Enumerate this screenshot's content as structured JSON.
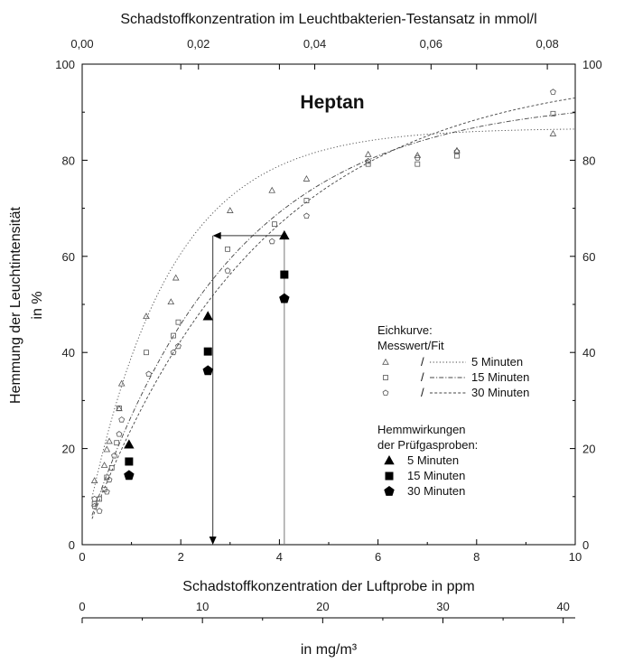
{
  "chart_data": {
    "type": "scatter",
    "title": "Heptan",
    "xlabel": "Schadstoffkonzentration der Luftprobe in ppm",
    "ylabel_line1": "Hemmung der Leuchtintensität",
    "ylabel_line2": "in %",
    "top_xlabel": "Schadstoffkonzentration im Leuchtbakterien-Testansatz in mmol/l",
    "bottom2_xlabel": "in mg/m³",
    "xlim": [
      0,
      10
    ],
    "ylim": [
      0,
      100
    ],
    "top_xlim": [
      0,
      0.0848
    ],
    "bottom2_xlim": [
      0,
      41
    ],
    "x_ticks": [
      "0",
      "2",
      "4",
      "6",
      "8",
      "10"
    ],
    "y_ticks": [
      "0",
      "20",
      "40",
      "60",
      "80",
      "100"
    ],
    "y_ticks_right": [
      "0",
      "20",
      "40",
      "60",
      "80",
      "100"
    ],
    "top_ticks": [
      "0,00",
      "0,02",
      "0,04",
      "0,06",
      "0,08"
    ],
    "top_tick_values": [
      0,
      0.02,
      0.04,
      0.06,
      0.08
    ],
    "bottom2_ticks": [
      "0",
      "10",
      "20",
      "30",
      "40"
    ],
    "bottom2_tick_values": [
      0,
      10,
      20,
      30,
      40
    ],
    "calibration_series": [
      {
        "name": "5 Minuten",
        "marker": "triangle-open",
        "points": [
          [
            0.25,
            13.3
          ],
          [
            0.45,
            16.5
          ],
          [
            0.5,
            19.8
          ],
          [
            0.55,
            21.5
          ],
          [
            0.75,
            28.3
          ],
          [
            0.8,
            33.5
          ],
          [
            1.3,
            47.5
          ],
          [
            1.8,
            50.5
          ],
          [
            1.9,
            55.5
          ],
          [
            3.0,
            69.5
          ],
          [
            3.85,
            73.7
          ],
          [
            4.55,
            76.1
          ],
          [
            5.8,
            81.2
          ],
          [
            6.8,
            81.0
          ],
          [
            7.6,
            82.0
          ],
          [
            9.55,
            85.5
          ]
        ]
      },
      {
        "name": "15 Minuten",
        "marker": "square-open",
        "points": [
          [
            0.25,
            8.5
          ],
          [
            0.35,
            9.5
          ],
          [
            0.45,
            11.5
          ],
          [
            0.5,
            14.0
          ],
          [
            0.6,
            16.0
          ],
          [
            0.7,
            21.2
          ],
          [
            0.75,
            28.4
          ],
          [
            1.3,
            40.0
          ],
          [
            1.85,
            43.5
          ],
          [
            1.95,
            46.3
          ],
          [
            2.95,
            61.5
          ],
          [
            3.9,
            66.7
          ],
          [
            4.55,
            71.6
          ],
          [
            5.8,
            79.2
          ],
          [
            6.8,
            79.2
          ],
          [
            7.6,
            80.9
          ],
          [
            9.55,
            89.7
          ]
        ]
      },
      {
        "name": "30 Minuten",
        "marker": "pentagon-open",
        "points": [
          [
            0.25,
            9.5
          ],
          [
            0.25,
            8.0
          ],
          [
            0.35,
            7.0
          ],
          [
            0.5,
            11.0
          ],
          [
            0.55,
            13.5
          ],
          [
            0.65,
            18.5
          ],
          [
            0.75,
            23.0
          ],
          [
            0.8,
            26.0
          ],
          [
            1.35,
            35.5
          ],
          [
            1.85,
            40.0
          ],
          [
            1.95,
            41.3
          ],
          [
            2.95,
            57.0
          ],
          [
            3.85,
            63.1
          ],
          [
            4.55,
            68.4
          ],
          [
            5.8,
            79.8
          ],
          [
            6.8,
            80.5
          ],
          [
            7.6,
            81.8
          ],
          [
            9.55,
            94.2
          ]
        ]
      }
    ],
    "fit_curves": [
      {
        "name": "5 Minuten",
        "style": "dotted",
        "a": 86.7,
        "k": 0.6
      },
      {
        "name": "15 Minuten",
        "style": "dashdot",
        "a": 93.0,
        "k": 0.34
      },
      {
        "name": "30 Minuten",
        "style": "dashed",
        "a": 99.0,
        "k": 0.28
      }
    ],
    "test_samples": [
      {
        "name": "5 Minuten",
        "marker": "triangle-filled",
        "points": [
          [
            0.95,
            20.8
          ],
          [
            2.55,
            47.5
          ],
          [
            4.1,
            64.3
          ]
        ]
      },
      {
        "name": "15 Minuten",
        "marker": "square-filled",
        "points": [
          [
            0.95,
            17.3
          ],
          [
            2.55,
            40.2
          ],
          [
            4.1,
            56.2
          ]
        ]
      },
      {
        "name": "30 Minuten",
        "marker": "pentagon-filled",
        "points": [
          [
            0.95,
            14.4
          ],
          [
            2.55,
            36.2
          ],
          [
            4.1,
            51.2
          ]
        ]
      }
    ],
    "annotations": {
      "vertical_line_1": {
        "x": 4.1,
        "y_from": 0,
        "y_to": 64.3
      },
      "horizontal_arrow": {
        "from": [
          4.1,
          64.3
        ],
        "to": [
          2.65,
          64.3
        ]
      },
      "vertical_arrow": {
        "x": 2.65,
        "from_y": 64.3,
        "to_y": 0
      }
    },
    "legend": {
      "cal_title_line1": "Eichkurve:",
      "cal_title_line2": "Messwert/Fit",
      "sep": "/",
      "test_title_line1": "Hemmwirkungen",
      "test_title_line2": "der Prüfgasproben:",
      "items": [
        "5 Minuten",
        "15 Minuten",
        "30 Minuten"
      ]
    }
  }
}
